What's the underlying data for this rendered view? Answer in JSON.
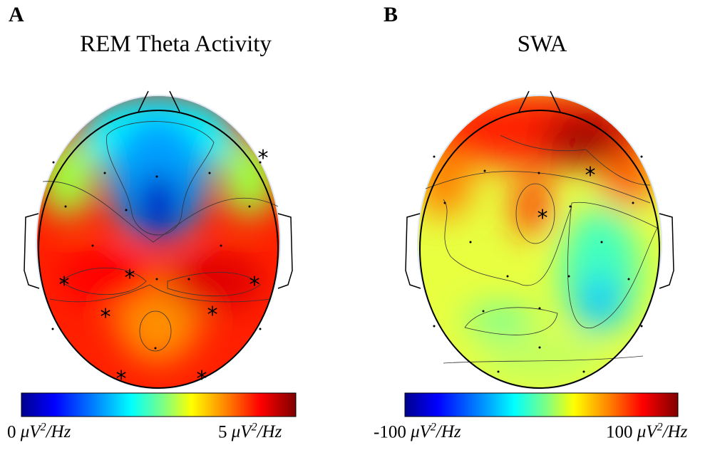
{
  "panels": [
    {
      "letter": "A",
      "title": "REM Theta Activity",
      "colorbar": {
        "min_label": "0",
        "max_label": "5",
        "unit": "μV²/Hz"
      }
    },
    {
      "letter": "B",
      "title": "SWA",
      "colorbar": {
        "min_label": "-100",
        "max_label": "100",
        "unit": "μV²/Hz"
      }
    }
  ],
  "significance_marker": "*",
  "colormap": [
    "#00008f",
    "#0000ff",
    "#0080ff",
    "#00ffff",
    "#80ff80",
    "#ffff00",
    "#ff8000",
    "#ff0000",
    "#800000"
  ]
}
